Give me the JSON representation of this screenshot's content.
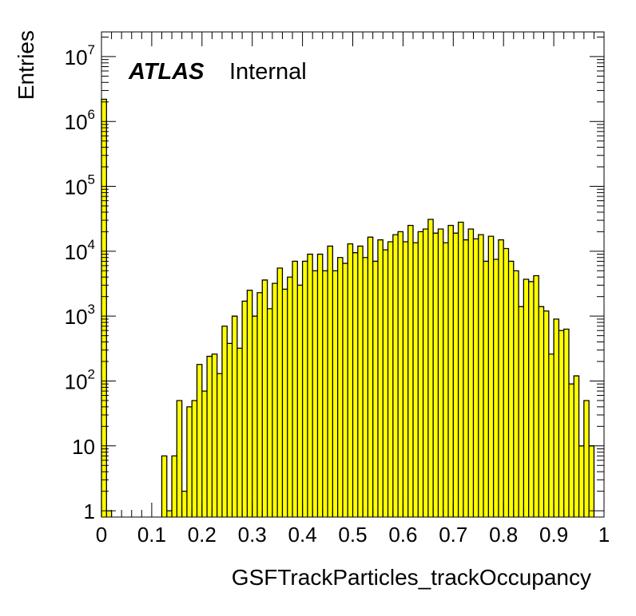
{
  "chart_data": {
    "type": "bar",
    "histogram": true,
    "log_y": true,
    "xlabel": "GSFTrackParticles_trackOccupancy",
    "ylabel": "Entries",
    "xlim": [
      0,
      1
    ],
    "ylim": [
      0.8,
      24000000
    ],
    "bin_width": 0.01,
    "x_ticks": [
      "0",
      "0.1",
      "0.2",
      "0.3",
      "0.4",
      "0.5",
      "0.6",
      "0.7",
      "0.8",
      "0.9",
      "1"
    ],
    "y_ticks": [
      {
        "value": 1,
        "base": "1",
        "exp": ""
      },
      {
        "value": 10,
        "base": "10",
        "exp": ""
      },
      {
        "value": 100,
        "base": "10",
        "exp": "2"
      },
      {
        "value": 1000,
        "base": "10",
        "exp": "3"
      },
      {
        "value": 10000,
        "base": "10",
        "exp": "4"
      },
      {
        "value": 100000,
        "base": "10",
        "exp": "5"
      },
      {
        "value": 1000000,
        "base": "10",
        "exp": "6"
      },
      {
        "value": 10000000,
        "base": "10",
        "exp": "7"
      }
    ],
    "bins": [
      [
        0.0,
        2200000
      ],
      [
        0.01,
        1
      ],
      [
        0.12,
        7
      ],
      [
        0.13,
        1
      ],
      [
        0.14,
        7
      ],
      [
        0.15,
        50
      ],
      [
        0.16,
        2
      ],
      [
        0.17,
        40
      ],
      [
        0.18,
        50
      ],
      [
        0.19,
        180
      ],
      [
        0.2,
        70
      ],
      [
        0.21,
        240
      ],
      [
        0.22,
        260
      ],
      [
        0.23,
        130
      ],
      [
        0.24,
        700
      ],
      [
        0.25,
        380
      ],
      [
        0.26,
        1000
      ],
      [
        0.27,
        320
      ],
      [
        0.28,
        1700
      ],
      [
        0.29,
        2500
      ],
      [
        0.3,
        1000
      ],
      [
        0.31,
        2300
      ],
      [
        0.32,
        3600
      ],
      [
        0.33,
        1300
      ],
      [
        0.34,
        3200
      ],
      [
        0.35,
        5500
      ],
      [
        0.36,
        2600
      ],
      [
        0.37,
        4000
      ],
      [
        0.38,
        7000
      ],
      [
        0.39,
        3000
      ],
      [
        0.4,
        7000
      ],
      [
        0.41,
        9000
      ],
      [
        0.42,
        5000
      ],
      [
        0.43,
        9000
      ],
      [
        0.44,
        5000
      ],
      [
        0.45,
        12000
      ],
      [
        0.46,
        5000
      ],
      [
        0.47,
        8000
      ],
      [
        0.48,
        6500
      ],
      [
        0.49,
        13000
      ],
      [
        0.5,
        9500
      ],
      [
        0.51,
        12000
      ],
      [
        0.52,
        8000
      ],
      [
        0.53,
        16500
      ],
      [
        0.54,
        7000
      ],
      [
        0.55,
        15000
      ],
      [
        0.56,
        10500
      ],
      [
        0.57,
        14000
      ],
      [
        0.58,
        18000
      ],
      [
        0.59,
        20000
      ],
      [
        0.6,
        14000
      ],
      [
        0.61,
        25000
      ],
      [
        0.62,
        13500
      ],
      [
        0.63,
        20000
      ],
      [
        0.64,
        22000
      ],
      [
        0.65,
        31000
      ],
      [
        0.66,
        19000
      ],
      [
        0.67,
        22000
      ],
      [
        0.68,
        13500
      ],
      [
        0.69,
        25000
      ],
      [
        0.7,
        19000
      ],
      [
        0.71,
        28000
      ],
      [
        0.72,
        15000
      ],
      [
        0.73,
        22000
      ],
      [
        0.74,
        15500
      ],
      [
        0.75,
        18000
      ],
      [
        0.76,
        7000
      ],
      [
        0.77,
        17000
      ],
      [
        0.78,
        7500
      ],
      [
        0.79,
        15000
      ],
      [
        0.8,
        11000
      ],
      [
        0.81,
        7000
      ],
      [
        0.82,
        5000
      ],
      [
        0.83,
        1400
      ],
      [
        0.84,
        3700
      ],
      [
        0.85,
        3400
      ],
      [
        0.86,
        4200
      ],
      [
        0.87,
        1400
      ],
      [
        0.88,
        1200
      ],
      [
        0.89,
        260
      ],
      [
        0.9,
        900
      ],
      [
        0.91,
        600
      ],
      [
        0.92,
        630
      ],
      [
        0.93,
        90
      ],
      [
        0.94,
        120
      ],
      [
        0.95,
        10
      ],
      [
        0.96,
        50
      ],
      [
        0.97,
        10
      ]
    ],
    "fill_color": "#ffff00",
    "line_color": "#000000",
    "grid": false
  },
  "annotation": {
    "atlas": "ATLAS",
    "label": "Internal"
  }
}
